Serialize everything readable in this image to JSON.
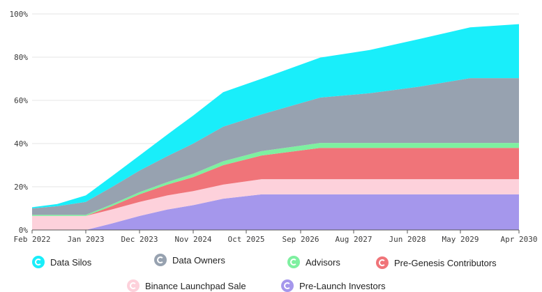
{
  "chart_data": {
    "type": "area",
    "stacked": true,
    "x_labels": [
      "Feb 2022",
      "Jan 2023",
      "Dec 2023",
      "Nov 2024",
      "Oct 2025",
      "Sep 2026",
      "Aug 2027",
      "Jun 2028",
      "May 2029",
      "Apr 2030"
    ],
    "x": [
      "Feb 2022",
      "Jun 2022",
      "Jan 2023",
      "Jun 2023",
      "Dec 2023",
      "Jun 2024",
      "Nov 2024",
      "Jun 2025",
      "Oct 2025",
      "Sep 2026",
      "Aug 2027",
      "Jun 2028",
      "May 2029",
      "Apr 2030"
    ],
    "y_ticks": [
      "0%",
      "20%",
      "40%",
      "60%",
      "80%",
      "100%"
    ],
    "ylim": [
      0,
      100
    ],
    "grid": true,
    "legend_position": "bottom",
    "series": [
      {
        "name": "Pre-Launch Investors",
        "color": "#a597ec",
        "values": [
          0,
          0,
          0,
          3,
          6.5,
          9.5,
          11.5,
          14.5,
          16.5,
          16.5,
          16.5,
          16.5,
          16.5,
          16.5
        ]
      },
      {
        "name": "Binance Launchpad Sale",
        "color": "#fdd1db",
        "values": [
          6.5,
          6.5,
          6.5,
          6.5,
          6.5,
          6.5,
          6.5,
          6.5,
          7,
          7,
          7,
          7,
          7,
          7
        ]
      },
      {
        "name": "Pre-Genesis Contributors",
        "color": "#f07479",
        "values": [
          0,
          0,
          0,
          1.5,
          3.5,
          5,
          6.5,
          9,
          11,
          14.5,
          14.5,
          14.5,
          14.5,
          14.5
        ]
      },
      {
        "name": "Advisors",
        "color": "#7ef0a0",
        "values": [
          0.5,
          0.5,
          0.5,
          0.8,
          1,
          1.2,
          1.5,
          1.8,
          2,
          2.3,
          2.3,
          2.3,
          2.3,
          2.3
        ]
      },
      {
        "name": "Data Owners",
        "color": "#97a2b0",
        "values": [
          3,
          4,
          6,
          8,
          10,
          12,
          14,
          16,
          17,
          21,
          23,
          26,
          30,
          30
        ]
      },
      {
        "name": "Data Silos",
        "color": "#19eefa",
        "values": [
          0.5,
          1,
          3,
          5,
          7,
          10,
          13,
          16,
          16.5,
          18.5,
          20,
          22,
          23.5,
          25
        ]
      }
    ]
  },
  "legend": [
    {
      "label": "Data Silos",
      "color": "#19eefa"
    },
    {
      "label": "Data Owners",
      "color": "#97a2b0"
    },
    {
      "label": "Advisors",
      "color": "#7ef0a0"
    },
    {
      "label": "Pre-Genesis Contributors",
      "color": "#f07479"
    },
    {
      "label": "Binance Launchpad Sale",
      "color": "#fdd1db"
    },
    {
      "label": "Pre-Launch Investors",
      "color": "#a597ec"
    }
  ]
}
